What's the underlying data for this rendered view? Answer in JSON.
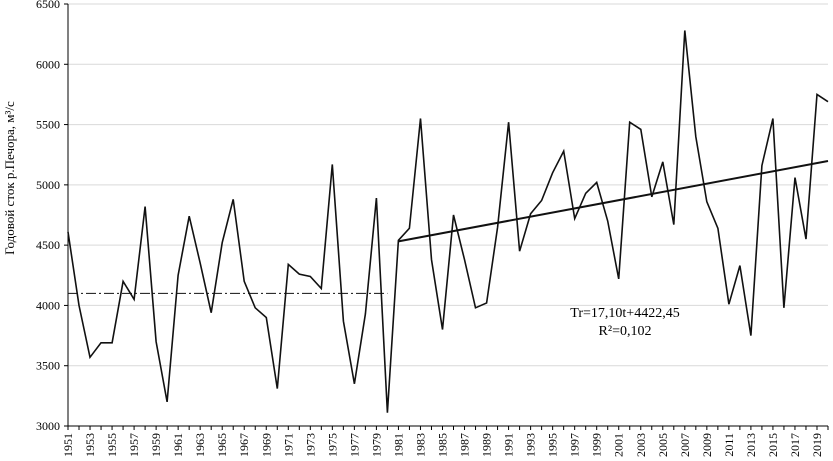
{
  "chart_data": {
    "type": "line",
    "title": "",
    "ylabel": "Годовой сток р.Печора, м³/с",
    "xlabel": "",
    "ylim": [
      3000,
      6500
    ],
    "yticks": [
      "3000",
      "3500",
      "4000",
      "4500",
      "5000",
      "5500",
      "6000",
      "6500"
    ],
    "xlim": [
      1951,
      2020
    ],
    "xticks": [
      "1951",
      "1953",
      "1955",
      "1957",
      "1959",
      "1961",
      "1963",
      "1965",
      "1967",
      "1969",
      "1971",
      "1973",
      "1975",
      "1977",
      "1979",
      "1981",
      "1983",
      "1985",
      "1987",
      "1989",
      "1991",
      "1993",
      "1995",
      "1997",
      "1999",
      "2001",
      "2003",
      "2005",
      "2007",
      "2009",
      "2011",
      "2013",
      "2015",
      "2017",
      "2019"
    ],
    "grid": "horizontal",
    "colors": {
      "line": "#111111",
      "grid": "#d9d9d9",
      "axis": "#000000"
    },
    "series": [
      {
        "style": "line",
        "x": [
          1951,
          1952,
          1953,
          1954,
          1955,
          1956,
          1957,
          1958,
          1959,
          1960,
          1961,
          1962,
          1963,
          1964,
          1965,
          1966,
          1967,
          1968,
          1969,
          1970,
          1971,
          1972,
          1973,
          1974,
          1975,
          1976,
          1977,
          1978,
          1979,
          1980,
          1981,
          1982,
          1983,
          1984,
          1985,
          1986,
          1987,
          1988,
          1989,
          1990,
          1991,
          1992,
          1993,
          1994,
          1995,
          1996,
          1997,
          1998,
          1999,
          2000,
          2001,
          2002,
          2003,
          2004,
          2005,
          2006,
          2007,
          2008,
          2009,
          2010,
          2011,
          2012,
          2013,
          2014,
          2015,
          2016,
          2017,
          2018,
          2019,
          2020
        ],
        "values": [
          4610,
          4000,
          3570,
          3690,
          3690,
          4200,
          4050,
          4820,
          3700,
          3200,
          4250,
          4740,
          4350,
          3940,
          4520,
          4880,
          4200,
          3980,
          3900,
          3310,
          4340,
          4260,
          4240,
          4140,
          5170,
          3870,
          3350,
          3930,
          4890,
          3110,
          4540,
          4640,
          5550,
          4380,
          3800,
          4750,
          4380,
          3980,
          4020,
          4650,
          5520,
          4450,
          4760,
          4870,
          5100,
          5280,
          4720,
          4930,
          5020,
          4700,
          4220,
          5520,
          5460,
          4900,
          5190,
          4670,
          6280,
          5400,
          4860,
          4640,
          4010,
          4330,
          3750,
          5160,
          5550,
          3980,
          5060,
          4550,
          5750,
          5690
        ]
      },
      {
        "style": "dash-dot",
        "x": [
          1951,
          1980
        ],
        "values": [
          4100,
          4100
        ]
      },
      {
        "style": "trend",
        "x": [
          1981,
          2020
        ],
        "values": [
          4531,
          5198
        ]
      }
    ],
    "annotations": [
      "Tr=17,10t+4422,45",
      "R²=0,102"
    ]
  }
}
